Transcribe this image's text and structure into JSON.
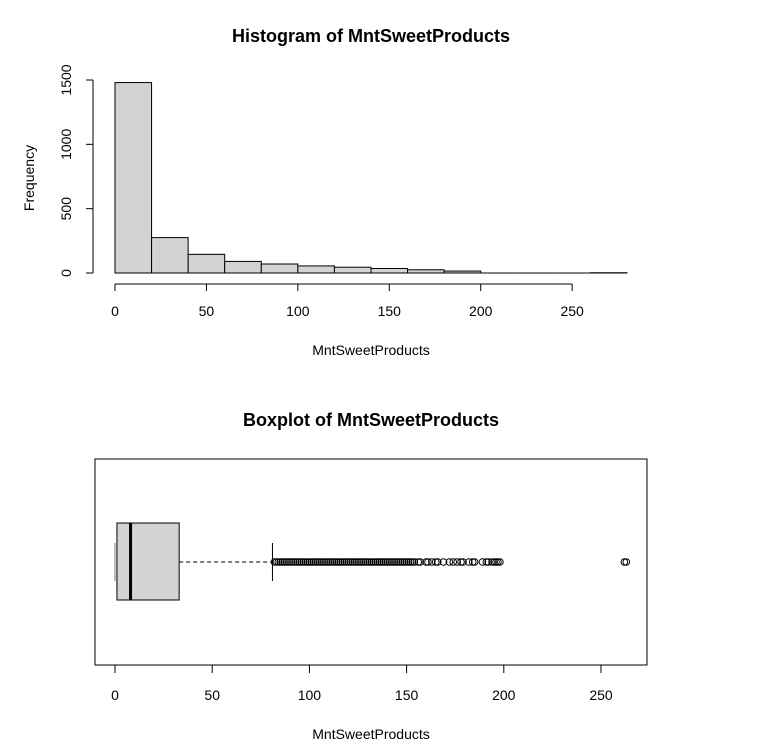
{
  "chart_data": [
    {
      "type": "bar",
      "title": "Histogram of MntSweetProducts",
      "xlabel": "MntSweetProducts",
      "ylabel": "Frequency",
      "bins": [
        {
          "x0": 0,
          "x1": 20,
          "count": 1480
        },
        {
          "x0": 20,
          "x1": 40,
          "count": 275
        },
        {
          "x0": 40,
          "x1": 60,
          "count": 145
        },
        {
          "x0": 60,
          "x1": 80,
          "count": 90
        },
        {
          "x0": 80,
          "x1": 100,
          "count": 70
        },
        {
          "x0": 100,
          "x1": 120,
          "count": 55
        },
        {
          "x0": 120,
          "x1": 140,
          "count": 45
        },
        {
          "x0": 140,
          "x1": 160,
          "count": 35
        },
        {
          "x0": 160,
          "x1": 180,
          "count": 25
        },
        {
          "x0": 180,
          "x1": 200,
          "count": 15
        },
        {
          "x0": 200,
          "x1": 220,
          "count": 0
        },
        {
          "x0": 220,
          "x1": 240,
          "count": 0
        },
        {
          "x0": 240,
          "x1": 260,
          "count": 0
        },
        {
          "x0": 260,
          "x1": 280,
          "count": 2
        }
      ],
      "xlim": [
        0,
        280
      ],
      "ylim": [
        0,
        1500
      ],
      "x_ticks": [
        0,
        50,
        100,
        150,
        200,
        250
      ],
      "y_ticks": [
        0,
        500,
        1000,
        1500
      ]
    },
    {
      "type": "box",
      "title": "Boxplot of MntSweetProducts",
      "xlabel": "MntSweetProducts",
      "min": 0,
      "q1": 1,
      "median": 8,
      "q3": 33,
      "whisker_low": 0,
      "whisker_high": 81,
      "outliers": [
        82,
        83,
        84,
        85,
        86,
        87,
        88,
        89,
        90,
        91,
        92,
        93,
        94,
        95,
        96,
        97,
        98,
        99,
        100,
        101,
        102,
        103,
        104,
        105,
        106,
        107,
        108,
        109,
        110,
        111,
        112,
        113,
        114,
        115,
        116,
        117,
        118,
        119,
        120,
        121,
        122,
        123,
        124,
        125,
        126,
        127,
        128,
        129,
        130,
        131,
        132,
        133,
        134,
        135,
        136,
        137,
        138,
        139,
        140,
        141,
        142,
        143,
        144,
        145,
        146,
        147,
        148,
        149,
        150,
        151,
        152,
        153,
        154,
        156,
        157,
        160,
        161,
        163,
        165,
        166,
        169,
        172,
        174,
        176,
        178,
        179,
        182,
        184,
        185,
        189,
        191,
        192,
        194,
        195,
        196,
        197,
        198,
        262,
        263
      ],
      "xlim": [
        -10,
        272
      ],
      "x_ticks": [
        0,
        50,
        100,
        150,
        200,
        250
      ]
    }
  ]
}
